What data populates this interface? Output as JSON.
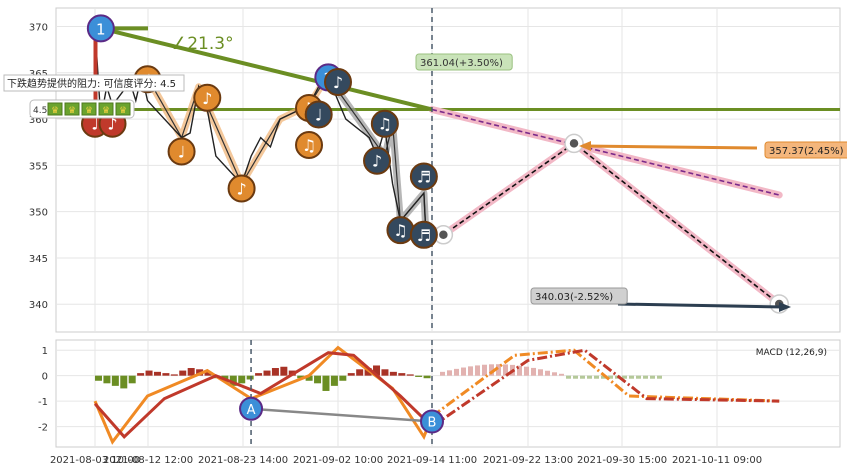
{
  "chart_data": [
    {
      "type": "line",
      "panel": "price",
      "ylim": [
        337,
        372
      ],
      "yticks": [
        340,
        345,
        350,
        355,
        360,
        365,
        370
      ],
      "grid": true,
      "price_series": [
        [
          "2021-08-03 12:00",
          369.0
        ],
        [
          "2021-08-04 10:00",
          360.0
        ],
        [
          "2021-08-05 10:00",
          363.5
        ],
        [
          "2021-08-06 10:00",
          361.5
        ],
        [
          "2021-08-09 10:00",
          364.0
        ],
        [
          "2021-08-10 10:00",
          362.0
        ],
        [
          "2021-08-11 10:00",
          364.8
        ],
        [
          "2021-08-12 10:00",
          362.0
        ],
        [
          "2021-08-13 10:00",
          361.0
        ],
        [
          "2021-08-16 10:00",
          358.0
        ],
        [
          "2021-08-17 10:00",
          358.5
        ],
        [
          "2021-08-18 10:00",
          363.5
        ],
        [
          "2021-08-19 10:00",
          361.0
        ],
        [
          "2021-08-20 10:00",
          356.0
        ],
        [
          "2021-08-23 10:00",
          353.0
        ],
        [
          "2021-08-24 10:00",
          356.0
        ],
        [
          "2021-08-25 10:00",
          358.0
        ],
        [
          "2021-08-26 10:00",
          357.0
        ],
        [
          "2021-08-27 10:00",
          360.0
        ],
        [
          "2021-08-30 10:00",
          361.5
        ],
        [
          "2021-08-31 10:00",
          363.5
        ],
        [
          "2021-09-01 10:00",
          364.5
        ],
        [
          "2021-09-02 10:00",
          362.0
        ],
        [
          "2021-09-03 10:00",
          360.0
        ],
        [
          "2021-09-06 10:00",
          358.0
        ],
        [
          "2021-09-07 10:00",
          356.0
        ],
        [
          "2021-09-08 10:00",
          359.0
        ],
        [
          "2021-09-09 10:00",
          353.0
        ],
        [
          "2021-09-10 10:00",
          349.0
        ],
        [
          "2021-09-13 10:00",
          352.0
        ],
        [
          "2021-09-13 15:00",
          348.5
        ]
      ],
      "channel_lines": [
        {
          "color": "#e0a060",
          "points": [
            [
              "2021-08-12 10:00",
              364.5
            ],
            [
              "2021-08-16 10:00",
              358.0
            ],
            [
              "2021-08-18 10:00",
              363.5
            ],
            [
              "2021-08-23 10:00",
              353.0
            ],
            [
              "2021-08-27 10:00",
              360.0
            ],
            [
              "2021-08-30 10:00",
              361.5
            ],
            [
              "2021-09-01 10:00",
              364.8
            ]
          ]
        },
        {
          "color": "#555555",
          "points": [
            [
              "2021-09-01 10:00",
              364.5
            ],
            [
              "2021-09-08 10:00",
              356.0
            ],
            [
              "2021-09-09 10:00",
              359.5
            ],
            [
              "2021-09-10 10:00",
              349.0
            ],
            [
              "2021-09-13 10:00",
              352.0
            ],
            [
              "2021-09-13 15:00",
              348.5
            ]
          ]
        }
      ],
      "trend_line": {
        "color": "#6b8e23",
        "start": [
          "2021-08-04 10:00",
          369.8
        ],
        "end": [
          "2021-09-14 11:00",
          361.04
        ],
        "angle_label": "∠21.3°"
      },
      "horizontal_line": {
        "color": "#6b8e23",
        "y": 361.04
      },
      "top_bar": {
        "color": "#6b8e23",
        "x": [
          "2021-08-03 12:00",
          "2021-08-12 12:00"
        ],
        "y": 369.8
      },
      "forecast_lines": [
        {
          "style": "dashed-black-on-pink",
          "points": [
            [
              "2021-09-13 15:00",
              348.5
            ],
            [
              "2021-09-15 10:00",
              347.5
            ],
            [
              "2021-09-26 12:00",
              357.37
            ],
            [
              "2021-10-18 10:00",
              340.03
            ]
          ]
        },
        {
          "style": "dashed-purple-on-pink",
          "points": [
            [
              "2021-09-14 11:00",
              361.04
            ],
            [
              "2021-10-18 10:00",
              351.8
            ]
          ]
        }
      ],
      "markers": [
        {
          "label": "1",
          "x": "2021-08-04 10:00",
          "y": 369.8,
          "color": "#3b8fd8"
        },
        {
          "label": "2",
          "x": "2021-09-01 10:00",
          "y": 364.5,
          "color": "#3b8fd8"
        },
        {
          "label": "♩",
          "x": "2021-08-03 10:00",
          "y": 359.5,
          "color": "#c0392b"
        },
        {
          "label": "♪",
          "x": "2021-08-06 10:00",
          "y": 359.5,
          "color": "#c0392b"
        },
        {
          "label": "♩",
          "x": "2021-08-12 10:00",
          "y": 364.3,
          "color": "#e08a2e"
        },
        {
          "label": "♩",
          "x": "2021-08-16 10:00",
          "y": 356.5,
          "color": "#e08a2e"
        },
        {
          "label": "♪",
          "x": "2021-08-19 10:00",
          "y": 362.3,
          "color": "#e08a2e"
        },
        {
          "label": "♪",
          "x": "2021-08-23 10:00",
          "y": 352.5,
          "color": "#e08a2e"
        },
        {
          "label": "♫",
          "x": "2021-08-30 10:00",
          "y": 361.2,
          "color": "#e08a2e"
        },
        {
          "label": "♫",
          "x": "2021-08-30 10:00",
          "y": 357.2,
          "color": "#e08a2e"
        },
        {
          "label": "♩",
          "x": "2021-08-31 10:00",
          "y": 360.5,
          "color": "#34495e"
        },
        {
          "label": "♪",
          "x": "2021-09-02 10:00",
          "y": 364.0,
          "color": "#34495e"
        },
        {
          "label": "♫",
          "x": "2021-09-08 10:00",
          "y": 359.5,
          "color": "#34495e"
        },
        {
          "label": "♪",
          "x": "2021-09-07 10:00",
          "y": 355.5,
          "color": "#34495e"
        },
        {
          "label": "♬",
          "x": "2021-09-13 10:00",
          "y": 353.8,
          "color": "#34495e"
        },
        {
          "label": "♫",
          "x": "2021-09-10 10:00",
          "y": 348.0,
          "color": "#34495e"
        },
        {
          "label": "♬",
          "x": "2021-09-13 10:00",
          "y": 347.5,
          "color": "#34495e"
        }
      ],
      "annotations": [
        {
          "text": "361.04(+3.50%)",
          "x": "2021-09-14 11:00",
          "y": 361.04
        },
        {
          "text": "357.37(2.45%)",
          "x": "2021-09-26 12:00",
          "y": 357.37
        },
        {
          "text": "340.03(-2.52%)",
          "x": "2021-10-18 10:00",
          "y": 340.03
        }
      ],
      "tooltip": {
        "title": "下跌趋势提供的阻力: 可信度评分: 4.5",
        "score": "4.5",
        "badges": 5
      }
    },
    {
      "type": "bar",
      "panel": "macd",
      "legend": "MACD (12,26,9)",
      "ylim": [
        -2.8,
        1.4
      ],
      "yticks": [
        1,
        0,
        -1,
        -2
      ],
      "grid": true,
      "histogram": [
        -0.2,
        -0.3,
        -0.4,
        -0.5,
        -0.3,
        0.1,
        0.2,
        0.15,
        0.1,
        0.05,
        0.2,
        0.3,
        0.25,
        0.15,
        -0.1,
        -0.2,
        -0.4,
        -0.3,
        -0.15,
        0.1,
        0.2,
        0.3,
        0.35,
        0.2,
        -0.1,
        -0.2,
        -0.3,
        -0.6,
        -0.4,
        -0.2,
        0.1,
        0.25,
        0.3,
        0.4,
        0.25,
        0.15,
        0.1,
        0.05,
        -0.05,
        -0.1
      ],
      "macd_line": [
        [
          "2021-08-03 10:00",
          -1.0
        ],
        [
          "2021-08-06 10:00",
          -2.6
        ],
        [
          "2021-08-12 10:00",
          -0.8
        ],
        [
          "2021-08-19 10:00",
          0.2
        ],
        [
          "2021-08-24 10:00",
          -0.9
        ],
        [
          "2021-08-30 10:00",
          0.0
        ],
        [
          "2021-09-02 10:00",
          1.1
        ],
        [
          "2021-09-09 10:00",
          -0.5
        ],
        [
          "2021-09-13 10:00",
          -2.4
        ],
        [
          "2021-09-14 11:00",
          -1.6
        ],
        [
          "2021-09-21 10:00",
          0.8
        ],
        [
          "2021-09-26 12:00",
          1.0
        ],
        [
          "2021-10-01 10:00",
          -0.8
        ],
        [
          "2021-10-18 10:00",
          -1.0
        ]
      ],
      "signal_line": [
        [
          "2021-08-03 10:00",
          -1.1
        ],
        [
          "2021-08-08 10:00",
          -2.4
        ],
        [
          "2021-08-14 10:00",
          -0.9
        ],
        [
          "2021-08-20 10:00",
          0.0
        ],
        [
          "2021-08-25 10:00",
          -0.7
        ],
        [
          "2021-09-01 10:00",
          0.9
        ],
        [
          "2021-09-04 10:00",
          0.8
        ],
        [
          "2021-09-10 10:00",
          -0.8
        ],
        [
          "2021-09-14 11:00",
          -2.0
        ],
        [
          "2021-09-22 13:00",
          0.6
        ],
        [
          "2021-09-27 10:00",
          1.0
        ],
        [
          "2021-10-03 10:00",
          -0.9
        ],
        [
          "2021-10-18 10:00",
          -1.0
        ]
      ],
      "markers": [
        {
          "label": "A",
          "x": "2021-08-24 10:00",
          "y": -1.3,
          "color": "#3b8fd8"
        },
        {
          "label": "B",
          "x": "2021-09-14 11:00",
          "y": -1.8,
          "color": "#3b8fd8"
        }
      ],
      "vertical_lines": [
        "2021-08-24 10:00",
        "2021-09-14 11:00"
      ]
    }
  ],
  "x_axis": {
    "range": [
      "2021-08-01 10:00",
      "2021-10-20 10:00"
    ],
    "ticks": [
      {
        "label": "2021-08-03 10:00",
        "x": "2021-08-03 10:00"
      },
      {
        "label": "2021-08-12 12:00",
        "x": "2021-08-12 12:00"
      },
      {
        "label": "2021-08-23 14:00",
        "x": "2021-08-23 14:00"
      },
      {
        "label": "2021-09-02 10:00",
        "x": "2021-09-02 10:00"
      },
      {
        "label": "2021-09-14 11:00",
        "x": "2021-09-14 11:00"
      },
      {
        "label": "2021-09-22 13:00",
        "x": "2021-09-22 13:00"
      },
      {
        "label": "2021-09-30 15:00",
        "x": "2021-09-30 15:00"
      },
      {
        "label": "2021-10-11 09:00",
        "x": "2021-10-11 09:00"
      }
    ],
    "vertical_cursor": "2021-09-14 11:00"
  }
}
